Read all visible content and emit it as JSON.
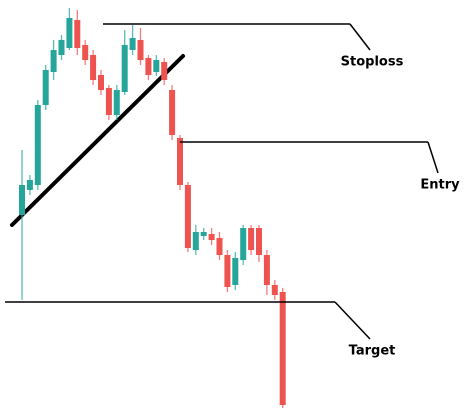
{
  "chart_data": {
    "type": "candlestick",
    "ylim": [
      0,
      411
    ],
    "up_color": "#26a69a",
    "down_color": "#ef5350",
    "open": [
      196,
      221,
      226,
      306,
      339,
      356,
      363,
      391,
      366,
      356,
      336,
      323,
      296,
      319,
      361,
      371,
      353,
      339,
      349,
      321,
      273,
      226,
      161,
      175,
      177,
      173,
      156,
      126,
      151,
      183,
      183,
      156,
      126,
      119
    ],
    "high": [
      261,
      236,
      311,
      346,
      371,
      376,
      403,
      401,
      371,
      361,
      341,
      326,
      326,
      381,
      386,
      383,
      356,
      356,
      353,
      326,
      276,
      229,
      186,
      183,
      183,
      179,
      161,
      159,
      186,
      186,
      186,
      161,
      131,
      123
    ],
    "low": [
      111,
      216,
      221,
      301,
      331,
      351,
      361,
      356,
      346,
      326,
      316,
      291,
      291,
      316,
      356,
      346,
      331,
      335,
      326,
      271,
      221,
      159,
      156,
      171,
      166,
      151,
      119,
      121,
      146,
      156,
      149,
      116,
      111,
      3
    ],
    "close": [
      226,
      231,
      306,
      341,
      361,
      371,
      393,
      363,
      351,
      331,
      321,
      296,
      321,
      366,
      373,
      351,
      336,
      351,
      331,
      276,
      226,
      163,
      179,
      179,
      171,
      156,
      124,
      153,
      183,
      161,
      156,
      126,
      116,
      6
    ],
    "levels": [
      {
        "label": "Stoploss",
        "value": 387
      },
      {
        "label": "Entry",
        "value": 269
      },
      {
        "label": "Target",
        "value": 109
      }
    ]
  }
}
